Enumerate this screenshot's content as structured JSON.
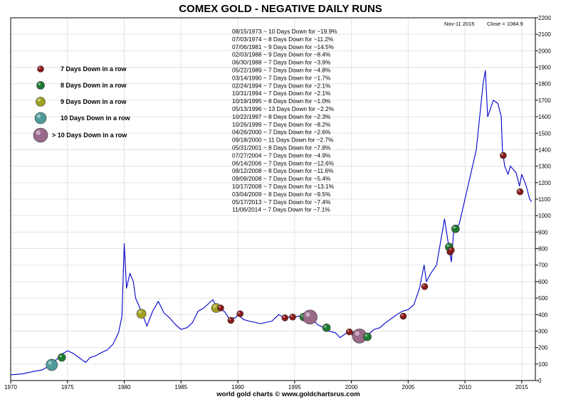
{
  "chart_data": {
    "type": "line",
    "title": "COMEX GOLD - NEGATIVE DAILY RUNS",
    "credit": "world gold charts © www.goldchartsrus.com",
    "info": {
      "date": "Nov-11  2015",
      "close": "Close = 1084.9"
    },
    "x_range": [
      1970,
      2016.2
    ],
    "y_range": [
      0,
      2200
    ],
    "log_scale": false,
    "grid": true,
    "x_ticks": [
      1970,
      1975,
      1980,
      1985,
      1990,
      1995,
      2000,
      2005,
      2010,
      2015
    ],
    "y_ticks": [
      0,
      100,
      200,
      300,
      400,
      500,
      600,
      700,
      800,
      900,
      1000,
      1100,
      1200,
      1300,
      1400,
      1500,
      1600,
      1700,
      1800,
      1900,
      2000,
      2100,
      2200
    ],
    "series": [
      {
        "color": "#0000cc",
        "points": [
          [
            1970.0,
            35
          ],
          [
            1971.0,
            40
          ],
          [
            1972.0,
            55
          ],
          [
            1972.8,
            65
          ],
          [
            1973.3,
            85
          ],
          [
            1973.6,
            105
          ],
          [
            1974.0,
            125
          ],
          [
            1974.5,
            160
          ],
          [
            1975.0,
            180
          ],
          [
            1975.5,
            165
          ],
          [
            1976.0,
            140
          ],
          [
            1976.6,
            110
          ],
          [
            1977.0,
            140
          ],
          [
            1977.5,
            150
          ],
          [
            1978.0,
            170
          ],
          [
            1978.5,
            185
          ],
          [
            1979.0,
            220
          ],
          [
            1979.5,
            290
          ],
          [
            1979.8,
            390
          ],
          [
            1980.0,
            830
          ],
          [
            1980.2,
            560
          ],
          [
            1980.5,
            650
          ],
          [
            1980.8,
            600
          ],
          [
            1981.0,
            500
          ],
          [
            1981.5,
            420
          ],
          [
            1982.0,
            330
          ],
          [
            1982.5,
            420
          ],
          [
            1983.0,
            480
          ],
          [
            1983.5,
            410
          ],
          [
            1984.0,
            380
          ],
          [
            1984.5,
            340
          ],
          [
            1985.0,
            310
          ],
          [
            1985.5,
            320
          ],
          [
            1986.0,
            350
          ],
          [
            1986.5,
            420
          ],
          [
            1987.0,
            440
          ],
          [
            1987.8,
            490
          ],
          [
            1988.2,
            440
          ],
          [
            1988.8,
            420
          ],
          [
            1989.2,
            380
          ],
          [
            1989.8,
            380
          ],
          [
            1990.0,
            400
          ],
          [
            1990.5,
            370
          ],
          [
            1991.0,
            360
          ],
          [
            1992.0,
            345
          ],
          [
            1993.0,
            360
          ],
          [
            1993.6,
            400
          ],
          [
            1994.0,
            385
          ],
          [
            1995.0,
            385
          ],
          [
            1996.0,
            400
          ],
          [
            1996.5,
            380
          ],
          [
            1997.0,
            340
          ],
          [
            1997.6,
            320
          ],
          [
            1998.0,
            300
          ],
          [
            1998.6,
            290
          ],
          [
            1999.0,
            260
          ],
          [
            1999.8,
            300
          ],
          [
            2000.0,
            285
          ],
          [
            2000.5,
            275
          ],
          [
            2001.0,
            265
          ],
          [
            2001.5,
            280
          ],
          [
            2002.0,
            310
          ],
          [
            2002.5,
            320
          ],
          [
            2003.0,
            350
          ],
          [
            2003.6,
            380
          ],
          [
            2004.0,
            400
          ],
          [
            2004.5,
            420
          ],
          [
            2005.0,
            430
          ],
          [
            2005.5,
            460
          ],
          [
            2006.0,
            560
          ],
          [
            2006.4,
            700
          ],
          [
            2006.6,
            600
          ],
          [
            2007.0,
            650
          ],
          [
            2007.5,
            700
          ],
          [
            2008.0,
            900
          ],
          [
            2008.2,
            980
          ],
          [
            2008.6,
            800
          ],
          [
            2008.8,
            720
          ],
          [
            2009.0,
            900
          ],
          [
            2009.5,
            950
          ],
          [
            2010.0,
            1100
          ],
          [
            2010.5,
            1250
          ],
          [
            2011.0,
            1400
          ],
          [
            2011.6,
            1800
          ],
          [
            2011.8,
            1880
          ],
          [
            2012.0,
            1600
          ],
          [
            2012.5,
            1700
          ],
          [
            2012.9,
            1680
          ],
          [
            2013.2,
            1600
          ],
          [
            2013.3,
            1400
          ],
          [
            2013.5,
            1300
          ],
          [
            2013.8,
            1250
          ],
          [
            2014.0,
            1300
          ],
          [
            2014.5,
            1260
          ],
          [
            2014.8,
            1180
          ],
          [
            2015.0,
            1250
          ],
          [
            2015.4,
            1180
          ],
          [
            2015.7,
            1100
          ],
          [
            2015.86,
            1084.9
          ]
        ]
      }
    ],
    "legend": {
      "placement": "top-left",
      "entries": [
        {
          "label": "7 Days Down in a row",
          "color": "#8b1a1a",
          "r": 4.5
        },
        {
          "label": "8 Days Down in a row",
          "color": "#1e7a30",
          "r": 5.5
        },
        {
          "label": "9 Days Down in a row",
          "color": "#a0a020",
          "r": 6.5
        },
        {
          "label": "10 Days Down in a row",
          "color": "#4f9a9a",
          "r": 8
        },
        {
          "label": "> 10 Days Down in a row",
          "color": "#9a6a8a",
          "r": 10
        }
      ]
    },
    "runs": [
      {
        "date": "08/15/1973",
        "days": 10,
        "pct": "-19.9%",
        "label": "08/15/1973 ~ 10 Days Down for ~19.9%",
        "x": 1973.62,
        "y": 95
      },
      {
        "date": "07/03/1974",
        "days": 8,
        "pct": "-11.2%",
        "label": "07/03/1974 ~ 8 Days Down for ~11.2%",
        "x": 1974.5,
        "y": 140
      },
      {
        "date": "07/06/1981",
        "days": 9,
        "pct": "-14.5%",
        "label": "07/06/1981 ~ 9 Days Down for ~14.5%",
        "x": 1981.51,
        "y": 405
      },
      {
        "date": "02/03/1988",
        "days": 9,
        "pct": "-8.4%",
        "label": "02/03/1988 ~ 9 Days Down for ~8.4%",
        "x": 1988.09,
        "y": 440
      },
      {
        "date": "06/30/1988",
        "days": 7,
        "pct": "-3.9%",
        "label": "06/30/1988 ~ 7 Days Down for ~3.9%",
        "x": 1988.49,
        "y": 440
      },
      {
        "date": "05/22/1989",
        "days": 7,
        "pct": "-4.8%",
        "label": "05/22/1989 ~ 7 Days Down for ~4.8%",
        "x": 1989.39,
        "y": 365
      },
      {
        "date": "03/14/1990",
        "days": 7,
        "pct": "-1.7%",
        "label": "03/14/1990 ~ 7 Days Down for ~1.7%",
        "x": 1990.2,
        "y": 405
      },
      {
        "date": "02/24/1994",
        "days": 7,
        "pct": "-2.1%",
        "label": "02/24/1994 ~ 7 Days Down for ~2.1%",
        "x": 1994.15,
        "y": 380
      },
      {
        "date": "10/31/1994",
        "days": 7,
        "pct": "-2.1%",
        "label": "10/31/1994 ~ 7 Days Down for ~2.1%",
        "x": 1994.83,
        "y": 385
      },
      {
        "date": "10/19/1995",
        "days": 8,
        "pct": "-1.0%",
        "label": "10/19/1995 ~ 8 Days Down for ~1.0%",
        "x": 1995.8,
        "y": 385
      },
      {
        "date": "05/13/1996",
        "days": 13,
        "pct": "-2.2%",
        "label": "05/13/1996 ~ 13 Days Down for ~2.2%",
        "x": 1996.36,
        "y": 385
      },
      {
        "date": "10/22/1997",
        "days": 8,
        "pct": "-2.3%",
        "label": "10/22/1997 ~ 8 Days Down for ~2.3%",
        "x": 1997.81,
        "y": 320
      },
      {
        "date": "10/26/1999",
        "days": 7,
        "pct": "-8.2%",
        "label": "10/26/1999 ~ 7 Days Down for ~8.2%",
        "x": 1999.82,
        "y": 295
      },
      {
        "date": "04/26/2000",
        "days": 7,
        "pct": "-2.6%",
        "label": "04/26/2000 ~ 7 Days Down for ~2.6%",
        "x": 2000.32,
        "y": 280
      },
      {
        "date": "09/18/2000",
        "days": 11,
        "pct": "-2.7%",
        "label": "09/18/2000 ~ 11 Days Down for ~2.7%",
        "x": 2000.71,
        "y": 270
      },
      {
        "date": "05/31/2001",
        "days": 8,
        "pct": "-7.8%",
        "label": "05/31/2001 ~ 8 Days Down for ~7.8%",
        "x": 2001.41,
        "y": 265
      },
      {
        "date": "07/27/2004",
        "days": 7,
        "pct": "-4.9%",
        "label": "07/27/2004 ~ 7 Days Down for ~4.9%",
        "x": 2004.57,
        "y": 390
      },
      {
        "date": "06/14/2006",
        "days": 7,
        "pct": "-12.6%",
        "label": "06/14/2006 ~ 7 Days Down for ~12.6%",
        "x": 2006.45,
        "y": 570
      },
      {
        "date": "08/12/2008",
        "days": 8,
        "pct": "-11.6%",
        "label": "08/12/2008 ~ 8 Days Down for ~11.6%",
        "x": 2008.61,
        "y": 810
      },
      {
        "date": "09/09/2008",
        "days": 7,
        "pct": "-5.4%",
        "label": "09/09/2008 ~ 7 Days Down for ~5.4%",
        "x": 2008.69,
        "y": 780
      },
      {
        "date": "10/17/2008",
        "days": 7,
        "pct": "-13.1%",
        "label": "10/17/2008 ~ 7 Days Down for ~13.1%",
        "x": 2008.79,
        "y": 790
      },
      {
        "date": "03/04/2009",
        "days": 8,
        "pct": "-9.5%",
        "label": "03/04/2009 ~ 8 Days Down for ~9.5%",
        "x": 2009.17,
        "y": 920
      },
      {
        "date": "05/17/2013",
        "days": 7,
        "pct": "-7.4%",
        "label": "05/17/2013 ~ 7 Days Down for ~7.4%",
        "x": 2013.37,
        "y": 1365
      },
      {
        "date": "11/06/2014",
        "days": 7,
        "pct": "-7.1%",
        "label": "11/06/2014 ~ 7 Days Down for ~7.1%",
        "x": 2014.85,
        "y": 1145
      }
    ]
  }
}
